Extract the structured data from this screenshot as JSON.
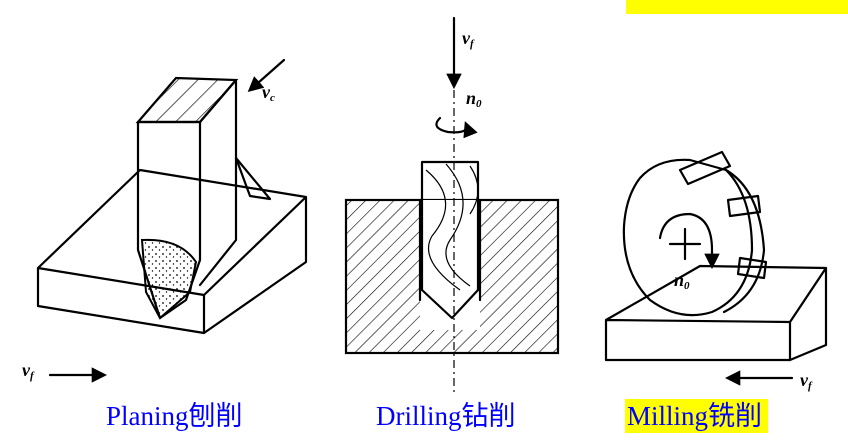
{
  "captions": {
    "planing": "Planing刨削",
    "drilling": "Drilling钻削",
    "milling": "Milling铣削"
  },
  "labels": {
    "planing_vc": "v",
    "planing_vc_sub": "c",
    "planing_vf": "v",
    "planing_vf_sub": "f",
    "drilling_vf": "v",
    "drilling_vf_sub": "f",
    "drilling_n0": "n",
    "drilling_n0_sub": "0",
    "milling_n0": "n",
    "milling_n0_sub": "0",
    "milling_vf": "v",
    "milling_vf_sub": "f"
  },
  "colors": {
    "caption_text": "#0000ff",
    "highlight": "#ffff00"
  }
}
